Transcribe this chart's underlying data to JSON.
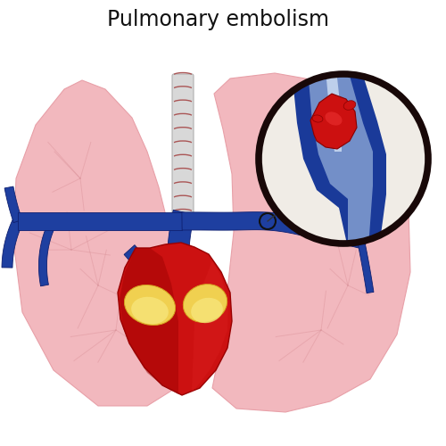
{
  "title": "Pulmonary embolism",
  "title_fontsize": 17,
  "bg_color": "#ffffff",
  "lung_color": "#f2b8be",
  "lung_edge": "#e8a0a8",
  "heart_color": "#cc1111",
  "heart_dark": "#990000",
  "heart_mid": "#bb0808",
  "vein_color": "#1e3fa0",
  "vein_dark": "#0f2070",
  "vein_light": "#4466cc",
  "trachea_fill": "#d8d8d8",
  "trachea_ring": "#aa5555",
  "fat_color": "#f0d050",
  "fat_dark": "#d4a020",
  "fat_light": "#f8e880",
  "clot_color": "#cc1010",
  "clot_dark": "#880000",
  "clot_light": "#ee3333",
  "mag_bg": "#f0ece6",
  "mag_border": "#180808",
  "mag_vessel": "#1a3a99",
  "mag_lumen": "#b0c8e8",
  "mag_highlight": "#d0e0f5",
  "small_circle": "#111111",
  "line_color": "#333333"
}
